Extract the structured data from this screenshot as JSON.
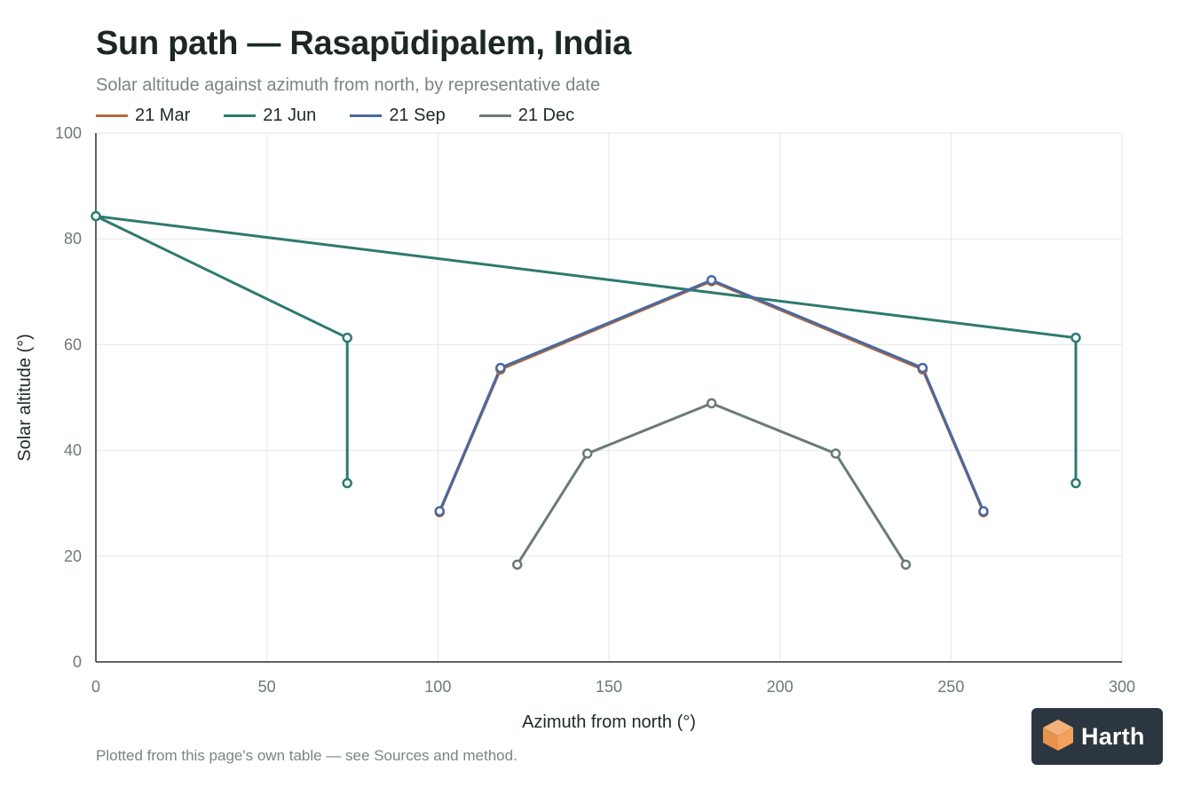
{
  "header": {
    "title": "Sun path — Rasapūdipalem, India",
    "subtitle": "Solar altitude against azimuth from north, by representative date"
  },
  "footnote": "Plotted from this page's own table — see Sources and method.",
  "brand": {
    "name": "Harth",
    "icon": "cube-logo-icon"
  },
  "chart_data": {
    "type": "line",
    "xlabel": "Azimuth from north (°)",
    "ylabel": "Solar altitude (°)",
    "xlim": [
      0,
      300
    ],
    "ylim": [
      0,
      100
    ],
    "xticks": [
      0,
      50,
      100,
      150,
      200,
      250,
      300
    ],
    "yticks": [
      0,
      20,
      40,
      60,
      80,
      100
    ],
    "grid": true,
    "legend_position": "top-left",
    "series": [
      {
        "name": "21 Mar",
        "color": "#b56a3a",
        "points": [
          [
            100.5,
            28.3
          ],
          [
            118.3,
            55.3
          ],
          [
            180,
            72
          ],
          [
            241.7,
            55.3
          ],
          [
            259.5,
            28.3
          ]
        ]
      },
      {
        "name": "21 Jun",
        "color": "#2d7a6e",
        "points": [
          [
            73.5,
            33.8
          ],
          [
            73.5,
            61.3
          ],
          [
            0,
            84.3
          ],
          [
            286.5,
            61.3
          ],
          [
            286.5,
            33.8
          ]
        ]
      },
      {
        "name": "21 Sep",
        "color": "#4a68a0",
        "points": [
          [
            100.5,
            28.5
          ],
          [
            118.3,
            55.6
          ],
          [
            180,
            72.2
          ],
          [
            241.7,
            55.6
          ],
          [
            259.5,
            28.5
          ]
        ]
      },
      {
        "name": "21 Dec",
        "color": "#6b7b74",
        "points": [
          [
            123.2,
            18.4
          ],
          [
            143.7,
            39.4
          ],
          [
            180,
            48.9
          ],
          [
            216.3,
            39.4
          ],
          [
            236.8,
            18.4
          ]
        ]
      }
    ]
  }
}
